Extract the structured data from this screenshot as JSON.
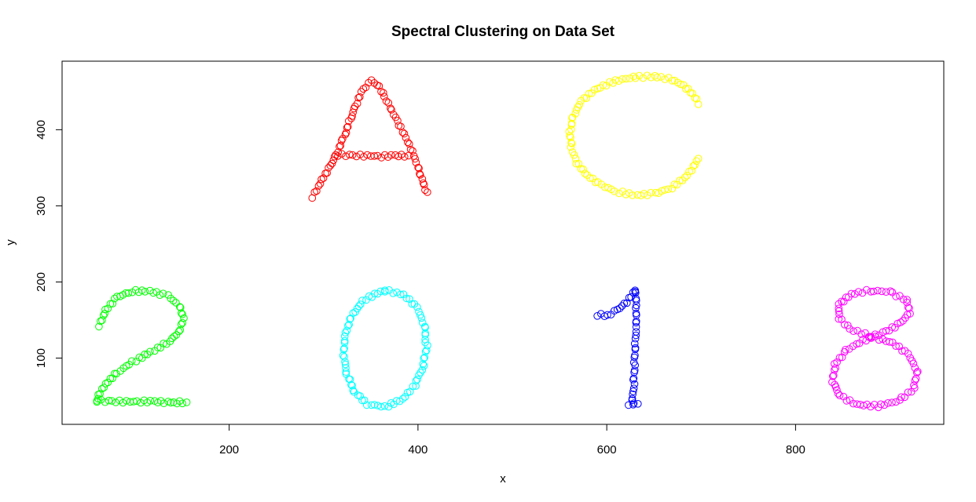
{
  "chart_data": {
    "type": "scatter",
    "title": "Spectral Clustering on Data Set",
    "xlabel": "x",
    "ylabel": "y",
    "xlim": [
      23,
      957
    ],
    "ylim": [
      13,
      490
    ],
    "x_ticks": [
      200,
      400,
      600,
      800
    ],
    "y_ticks": [
      100,
      200,
      300,
      400
    ],
    "grid": false,
    "marker": "open-circle",
    "series": [
      {
        "color": "#FF0000",
        "strokes": [
          [
            [
              288,
              312
            ],
            [
              297,
              334
            ],
            [
              306,
              352
            ],
            [
              314,
              372
            ],
            [
              322,
              393
            ],
            [
              329,
              414
            ],
            [
              336,
              436
            ],
            [
              343,
              453
            ],
            [
              352,
              464
            ],
            [
              358,
              460
            ],
            [
              365,
              443
            ],
            [
              372,
              425
            ],
            [
              379,
              407
            ],
            [
              386,
              389
            ],
            [
              393,
              371
            ],
            [
              399,
              352
            ],
            [
              404,
              335
            ],
            [
              410,
              318
            ]
          ],
          [
            [
              315,
              367
            ],
            [
              330,
              366
            ],
            [
              345,
              366
            ],
            [
              360,
              365
            ],
            [
              375,
              366
            ],
            [
              390,
              366
            ]
          ]
        ]
      },
      {
        "color": "#FFFF00",
        "strokes": [
          [
            [
              697,
              435
            ],
            [
              690,
              447
            ],
            [
              680,
              458
            ],
            [
              668,
              466
            ],
            [
              650,
              470
            ],
            [
              628,
              469
            ],
            [
              607,
              463
            ],
            [
              588,
              452
            ],
            [
              574,
              437
            ],
            [
              565,
              418
            ],
            [
              561,
              397
            ],
            [
              562,
              376
            ],
            [
              567,
              357
            ],
            [
              578,
              340
            ],
            [
              593,
              327
            ],
            [
              612,
              318
            ],
            [
              632,
              314
            ],
            [
              652,
              316
            ],
            [
              670,
              324
            ],
            [
              684,
              337
            ],
            [
              693,
              351
            ],
            [
              697,
              362
            ]
          ]
        ]
      },
      {
        "color": "#00FF00",
        "strokes": [
          [
            [
              62,
              143
            ],
            [
              68,
              163
            ],
            [
              80,
              180
            ],
            [
              96,
              188
            ],
            [
              115,
              188
            ],
            [
              135,
              182
            ],
            [
              148,
              169
            ],
            [
              153,
              152
            ],
            [
              148,
              134
            ],
            [
              135,
              120
            ],
            [
              117,
              108
            ],
            [
              97,
              95
            ],
            [
              80,
              81
            ],
            [
              68,
              66
            ],
            [
              60,
              51
            ],
            [
              60,
              44
            ]
          ],
          [
            [
              60,
              44
            ],
            [
              75,
              43
            ],
            [
              90,
              43
            ],
            [
              105,
              43
            ],
            [
              120,
              43
            ],
            [
              135,
              42
            ],
            [
              145,
              42
            ],
            [
              155,
              42
            ]
          ]
        ]
      },
      {
        "color": "#00FFFF",
        "strokes": [
          [
            [
              365,
              189
            ],
            [
              384,
              183
            ],
            [
              398,
              166
            ],
            [
              406,
              143
            ],
            [
              409,
              116
            ],
            [
              406,
              89
            ],
            [
              398,
              65
            ],
            [
              385,
              46
            ],
            [
              366,
              36
            ],
            [
              347,
              40
            ],
            [
              333,
              55
            ],
            [
              324,
              78
            ],
            [
              320,
              105
            ],
            [
              322,
              133
            ],
            [
              330,
              158
            ],
            [
              344,
              178
            ],
            [
              365,
              189
            ]
          ]
        ]
      },
      {
        "color": "#0000FF",
        "strokes": [
          [
            [
              590,
              157
            ],
            [
              600,
              156
            ],
            [
              610,
              163
            ],
            [
              620,
              174
            ],
            [
              630,
              189
            ]
          ],
          [
            [
              630,
              189
            ],
            [
              630,
              165
            ],
            [
              630,
              140
            ],
            [
              629,
              115
            ],
            [
              629,
              90
            ],
            [
              629,
              65
            ],
            [
              628,
              39
            ]
          ],
          [
            [
              623,
              40
            ],
            [
              628,
              40
            ],
            [
              633,
              40
            ]
          ]
        ]
      },
      {
        "color": "#FF00FF",
        "strokes": [
          [
            [
              880,
              128
            ],
            [
              895,
              135
            ],
            [
              910,
              146
            ],
            [
              920,
              160
            ],
            [
              917,
              176
            ],
            [
              900,
              187
            ],
            [
              880,
              189
            ],
            [
              860,
              184
            ],
            [
              847,
              170
            ],
            [
              847,
              153
            ],
            [
              858,
              138
            ],
            [
              880,
              128
            ]
          ],
          [
            [
              880,
              128
            ],
            [
              902,
              120
            ],
            [
              918,
              105
            ],
            [
              928,
              84
            ],
            [
              925,
              60
            ],
            [
              910,
              44
            ],
            [
              888,
              37
            ],
            [
              866,
              39
            ],
            [
              848,
              50
            ],
            [
              840,
              70
            ],
            [
              842,
              92
            ],
            [
              853,
              110
            ],
            [
              867,
              121
            ],
            [
              880,
              128
            ]
          ]
        ]
      }
    ]
  }
}
